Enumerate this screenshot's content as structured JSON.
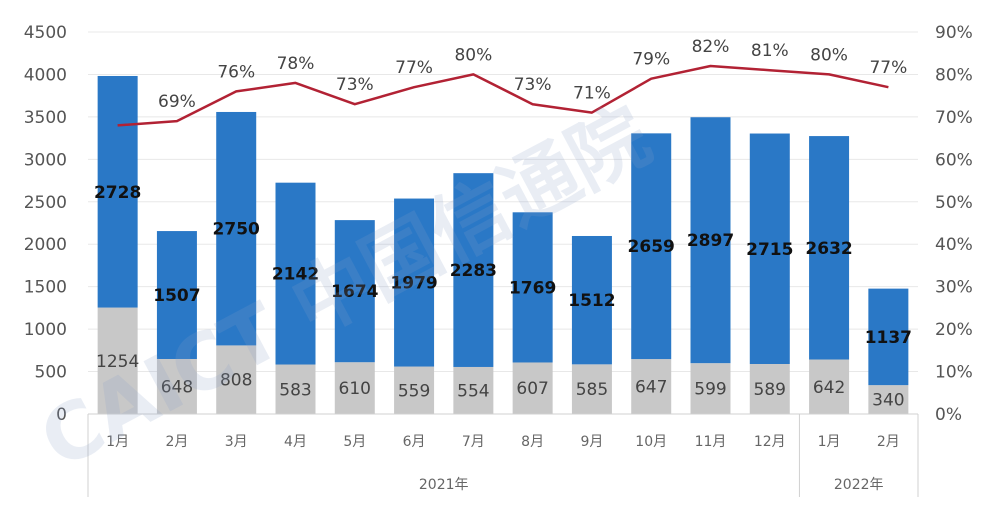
{
  "chart_data": {
    "type": "bar",
    "stacked": true,
    "categories": [
      "1月",
      "2月",
      "3月",
      "4月",
      "5月",
      "6月",
      "7月",
      "8月",
      "9月",
      "10月",
      "11月",
      "12月",
      "1月",
      "2月"
    ],
    "year_groups": [
      {
        "label": "2021年",
        "count": 12
      },
      {
        "label": "2022年",
        "count": 2
      }
    ],
    "series": [
      {
        "values": [
          1254,
          648,
          808,
          583,
          610,
          559,
          554,
          607,
          585,
          647,
          599,
          589,
          642,
          340
        ],
        "color": "#c8c8c8"
      },
      {
        "values": [
          2728,
          1507,
          2750,
          2142,
          1674,
          1979,
          2283,
          1769,
          1512,
          2659,
          2897,
          2715,
          2632,
          1137
        ],
        "color": "#2a78c6"
      }
    ],
    "line": {
      "values": [
        68,
        69,
        76,
        78,
        73,
        77,
        80,
        73,
        71,
        79,
        82,
        81,
        80,
        77
      ],
      "color": "#b22234",
      "axis": "right",
      "unit": "%"
    },
    "ylim": [
      0,
      4500
    ],
    "y_ticks": [
      0,
      500,
      1000,
      1500,
      2000,
      2500,
      3000,
      3500,
      4000,
      4500
    ],
    "y2lim": [
      0,
      90
    ],
    "y2_ticks": [
      "0%",
      "10%",
      "20%",
      "30%",
      "40%",
      "50%",
      "60%",
      "70%",
      "80%",
      "90%"
    ],
    "share_labels": [
      "",
      "69%",
      "76%",
      "78%",
      "73%",
      "77%",
      "80%",
      "73%",
      "71%",
      "79%",
      "82%",
      "81%",
      "80%",
      "77%"
    ],
    "grid": true,
    "xlabel": "",
    "ylabel": ""
  },
  "watermark": {
    "text": "CAICT 中国信通院"
  }
}
